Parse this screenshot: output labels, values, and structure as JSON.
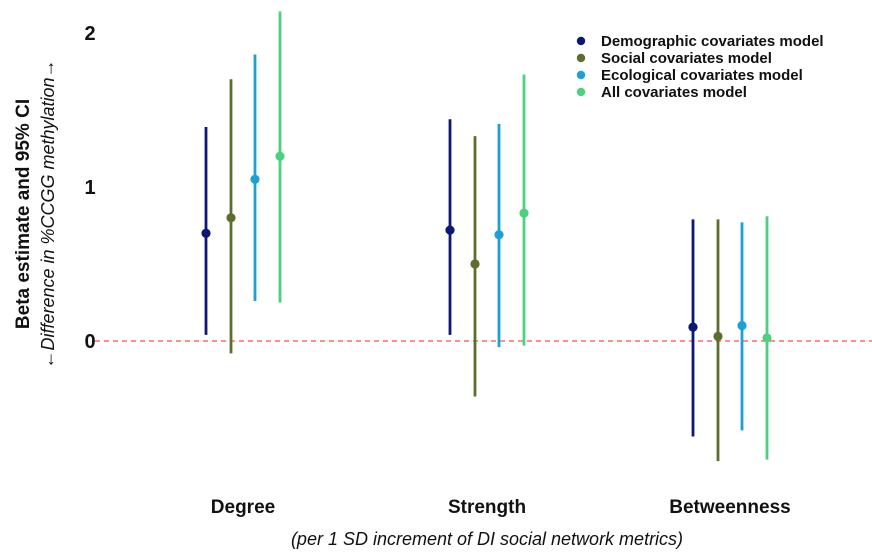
{
  "chart_data": {
    "type": "scatter",
    "subtype": "point-range",
    "ylabel": "Beta estimate and 95% CI",
    "ylabel_sub": "←Difference in %CCGG methylation→",
    "xlabel": "(per 1 SD increment of DI social network metrics)",
    "categories": [
      "Degree",
      "Strength",
      "Betweenness"
    ],
    "y_ticks": [
      "0",
      "1",
      "2"
    ],
    "ylim": [
      -0.8,
      2.2
    ],
    "reference_line": 0,
    "reference_line_color": "#ff6b6b",
    "legend_position": "top-right",
    "series": [
      {
        "name": "Demographic covariates model",
        "color": "#0d1775",
        "points": [
          {
            "estimate": 0.7,
            "lower": 0.04,
            "upper": 1.39
          },
          {
            "estimate": 0.72,
            "lower": 0.04,
            "upper": 1.44
          },
          {
            "estimate": 0.09,
            "lower": -0.62,
            "upper": 0.79
          }
        ]
      },
      {
        "name": "Social covariates model",
        "color": "#5b6e2e",
        "points": [
          {
            "estimate": 0.8,
            "lower": -0.08,
            "upper": 1.7
          },
          {
            "estimate": 0.5,
            "lower": -0.36,
            "upper": 1.33
          },
          {
            "estimate": 0.03,
            "lower": -0.78,
            "upper": 0.79
          }
        ]
      },
      {
        "name": "Ecological covariates model",
        "color": "#1ca1d6",
        "points": [
          {
            "estimate": 1.05,
            "lower": 0.26,
            "upper": 1.86
          },
          {
            "estimate": 0.69,
            "lower": -0.04,
            "upper": 1.41
          },
          {
            "estimate": 0.1,
            "lower": -0.58,
            "upper": 0.77
          }
        ]
      },
      {
        "name": "All covariates model",
        "color": "#4cd17e",
        "points": [
          {
            "estimate": 1.2,
            "lower": 0.25,
            "upper": 2.14
          },
          {
            "estimate": 0.83,
            "lower": -0.03,
            "upper": 1.73
          },
          {
            "estimate": 0.02,
            "lower": -0.77,
            "upper": 0.81
          }
        ]
      }
    ]
  }
}
